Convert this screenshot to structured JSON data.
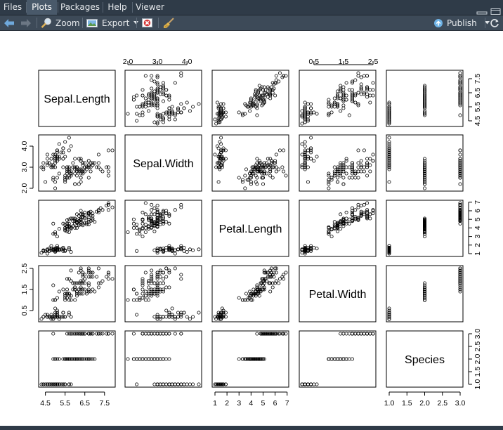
{
  "tabs": [
    {
      "label": "Files",
      "active": false
    },
    {
      "label": "Plots",
      "active": true
    },
    {
      "label": "Packages",
      "active": false
    },
    {
      "label": "Help",
      "active": false
    },
    {
      "label": "Viewer",
      "active": false
    }
  ],
  "toolbar": {
    "zoom_label": "Zoom",
    "export_label": "Export",
    "publish_label": "Publish",
    "icons": [
      "back-arrow-icon",
      "forward-arrow-icon",
      "zoom-magnifier-icon",
      "export-image-icon",
      "remove-plot-icon",
      "broom-icon",
      "publish-icon",
      "chevron-down-icon"
    ]
  },
  "colors": {
    "tabbar": "#2f3b48",
    "toolbar": "#3d4a58",
    "publish_blue": "#6fb3e6"
  },
  "chart_data": {
    "type": "scatter",
    "variables": [
      "Sepal.Length",
      "Sepal.Width",
      "Petal.Length",
      "Petal.Width",
      "Species"
    ],
    "ranges": [
      [
        4.3,
        7.9
      ],
      [
        2.0,
        4.4
      ],
      [
        1.0,
        6.9
      ],
      [
        0.1,
        2.5
      ],
      [
        1,
        3
      ]
    ],
    "ticks": {
      "Sepal.Length": [
        "4.5",
        "5.5",
        "6.5",
        "7.5"
      ],
      "Sepal.Width": [
        "2.0",
        "3.0",
        "4.0"
      ],
      "Petal.Length": [
        "1",
        "2",
        "3",
        "4",
        "5",
        "6",
        "7"
      ],
      "Petal.Width": [
        "0.5",
        "1.5",
        "2.5"
      ],
      "Species": [
        "1.0",
        "1.5",
        "2.0",
        "2.5",
        "3.0"
      ]
    },
    "tick_values": {
      "Sepal.Length": [
        4.5,
        5.5,
        6.5,
        7.5
      ],
      "Sepal.Width": [
        2.0,
        3.0,
        4.0
      ],
      "Petal.Length": [
        1,
        2,
        3,
        4,
        5,
        6,
        7
      ],
      "Petal.Width": [
        0.5,
        1.5,
        2.5
      ],
      "Species": [
        1.0,
        1.5,
        2.0,
        2.5,
        3.0
      ]
    },
    "species_index": [
      1,
      1,
      1,
      1,
      1,
      1,
      1,
      1,
      1,
      1,
      1,
      1,
      1,
      1,
      1,
      1,
      1,
      1,
      1,
      1,
      1,
      1,
      1,
      1,
      1,
      1,
      1,
      1,
      1,
      1,
      1,
      1,
      1,
      1,
      1,
      1,
      1,
      1,
      1,
      1,
      1,
      1,
      1,
      1,
      1,
      1,
      1,
      1,
      1,
      1,
      2,
      2,
      2,
      2,
      2,
      2,
      2,
      2,
      2,
      2,
      2,
      2,
      2,
      2,
      2,
      2,
      2,
      2,
      2,
      2,
      2,
      2,
      2,
      2,
      2,
      2,
      2,
      2,
      2,
      2,
      2,
      2,
      2,
      2,
      2,
      2,
      2,
      2,
      2,
      2,
      2,
      2,
      2,
      2,
      2,
      2,
      2,
      2,
      2,
      2,
      3,
      3,
      3,
      3,
      3,
      3,
      3,
      3,
      3,
      3,
      3,
      3,
      3,
      3,
      3,
      3,
      3,
      3,
      3,
      3,
      3,
      3,
      3,
      3,
      3,
      3,
      3,
      3,
      3,
      3,
      3,
      3,
      3,
      3,
      3,
      3,
      3,
      3,
      3,
      3,
      3,
      3,
      3,
      3,
      3,
      3,
      3,
      3,
      3,
      3
    ],
    "sepal_length": [
      5.1,
      4.9,
      4.7,
      4.6,
      5.0,
      5.4,
      4.6,
      5.0,
      4.4,
      4.9,
      5.4,
      4.8,
      4.8,
      4.3,
      5.8,
      5.7,
      5.4,
      5.1,
      5.7,
      5.1,
      5.4,
      5.1,
      4.6,
      5.1,
      4.8,
      5.0,
      5.0,
      5.2,
      5.2,
      4.7,
      4.8,
      5.4,
      5.2,
      5.5,
      4.9,
      5.0,
      5.5,
      4.9,
      4.4,
      5.1,
      5.0,
      4.5,
      4.4,
      5.0,
      5.1,
      4.8,
      5.1,
      4.6,
      5.3,
      5.0,
      7.0,
      6.4,
      6.9,
      5.5,
      6.5,
      5.7,
      6.3,
      4.9,
      6.6,
      5.2,
      5.0,
      5.9,
      6.0,
      6.1,
      5.6,
      6.7,
      5.6,
      5.8,
      6.2,
      5.6,
      5.9,
      6.1,
      6.3,
      6.1,
      6.4,
      6.6,
      6.8,
      6.7,
      6.0,
      5.7,
      5.5,
      5.5,
      5.8,
      6.0,
      5.4,
      6.0,
      6.7,
      6.3,
      5.6,
      5.5,
      5.5,
      6.1,
      5.8,
      5.0,
      5.6,
      5.7,
      5.7,
      6.2,
      5.1,
      5.7,
      6.3,
      5.8,
      7.1,
      6.3,
      6.5,
      7.6,
      4.9,
      7.3,
      6.7,
      7.2,
      6.5,
      6.4,
      6.8,
      5.7,
      5.8,
      6.4,
      6.5,
      7.7,
      7.7,
      6.0,
      6.9,
      5.6,
      7.7,
      6.3,
      6.7,
      7.2,
      6.2,
      6.1,
      6.4,
      7.2,
      7.4,
      7.9,
      6.4,
      6.3,
      6.1,
      7.7,
      6.3,
      6.4,
      6.0,
      6.9,
      6.7,
      6.9,
      5.8,
      6.8,
      6.7,
      6.7,
      6.3,
      6.5,
      6.2,
      5.9
    ],
    "sepal_width": [
      3.5,
      3.0,
      3.2,
      3.1,
      3.6,
      3.9,
      3.4,
      3.4,
      2.9,
      3.1,
      3.7,
      3.4,
      3.0,
      3.0,
      4.0,
      4.4,
      3.9,
      3.5,
      3.8,
      3.8,
      3.4,
      3.7,
      3.6,
      3.3,
      3.4,
      3.0,
      3.4,
      3.5,
      3.4,
      3.2,
      3.1,
      3.4,
      4.1,
      4.2,
      3.1,
      3.2,
      3.5,
      3.6,
      3.0,
      3.4,
      3.5,
      2.3,
      3.2,
      3.5,
      3.8,
      3.0,
      3.8,
      3.2,
      3.7,
      3.3,
      3.2,
      3.2,
      3.1,
      2.3,
      2.8,
      2.8,
      3.3,
      2.4,
      2.9,
      2.7,
      2.0,
      3.0,
      2.2,
      2.9,
      2.9,
      3.1,
      3.0,
      2.7,
      2.2,
      2.5,
      3.2,
      2.8,
      2.5,
      2.8,
      2.9,
      3.0,
      2.8,
      3.0,
      2.9,
      2.6,
      2.4,
      2.4,
      2.7,
      2.7,
      3.0,
      3.4,
      3.1,
      2.3,
      3.0,
      2.5,
      2.6,
      3.0,
      2.6,
      2.3,
      2.7,
      3.0,
      2.9,
      2.9,
      2.5,
      2.8,
      3.3,
      2.7,
      3.0,
      2.9,
      3.0,
      3.0,
      2.5,
      2.9,
      2.5,
      3.6,
      3.2,
      2.7,
      3.0,
      2.5,
      2.8,
      3.2,
      3.0,
      3.8,
      2.6,
      2.2,
      3.2,
      2.8,
      2.8,
      2.7,
      3.3,
      3.2,
      2.8,
      3.0,
      2.8,
      3.0,
      2.8,
      3.8,
      2.8,
      2.8,
      2.6,
      3.0,
      3.4,
      3.1,
      3.0,
      3.1,
      3.1,
      3.1,
      2.7,
      3.2,
      3.3,
      3.0,
      2.5,
      3.0,
      3.4,
      3.0
    ],
    "petal_length": [
      1.4,
      1.4,
      1.3,
      1.5,
      1.4,
      1.7,
      1.4,
      1.5,
      1.4,
      1.5,
      1.5,
      1.6,
      1.4,
      1.1,
      1.2,
      1.5,
      1.3,
      1.4,
      1.7,
      1.5,
      1.7,
      1.5,
      1.0,
      1.7,
      1.9,
      1.6,
      1.6,
      1.5,
      1.4,
      1.6,
      1.6,
      1.5,
      1.5,
      1.4,
      1.5,
      1.2,
      1.3,
      1.4,
      1.3,
      1.5,
      1.3,
      1.3,
      1.3,
      1.6,
      1.9,
      1.4,
      1.6,
      1.4,
      1.5,
      1.4,
      4.7,
      4.5,
      4.9,
      4.0,
      4.6,
      4.5,
      4.7,
      3.3,
      4.6,
      3.9,
      3.5,
      4.2,
      4.0,
      4.7,
      3.6,
      4.4,
      4.5,
      4.1,
      4.5,
      3.9,
      4.8,
      4.0,
      4.9,
      4.7,
      4.3,
      4.4,
      4.8,
      5.0,
      4.5,
      3.5,
      3.8,
      3.7,
      3.9,
      5.1,
      4.5,
      4.5,
      4.7,
      4.4,
      4.1,
      4.0,
      4.4,
      4.6,
      4.0,
      3.3,
      4.2,
      4.2,
      4.2,
      4.3,
      3.0,
      4.1,
      6.0,
      5.1,
      5.9,
      5.6,
      5.8,
      6.6,
      4.5,
      6.3,
      5.8,
      6.1,
      5.1,
      5.3,
      5.5,
      5.0,
      5.1,
      5.3,
      5.5,
      6.7,
      6.9,
      5.0,
      5.7,
      4.9,
      6.7,
      4.9,
      5.7,
      6.0,
      4.8,
      4.9,
      5.6,
      5.8,
      6.1,
      6.4,
      5.6,
      5.1,
      5.6,
      6.1,
      5.6,
      5.5,
      4.8,
      5.4,
      5.6,
      5.1,
      5.1,
      5.9,
      5.7,
      5.2,
      5.0,
      5.2,
      5.4,
      5.1
    ],
    "petal_width": [
      0.2,
      0.2,
      0.2,
      0.2,
      0.2,
      0.4,
      0.3,
      0.2,
      0.2,
      0.1,
      0.2,
      0.2,
      0.1,
      0.1,
      0.2,
      0.4,
      0.4,
      0.3,
      0.3,
      0.3,
      0.2,
      0.4,
      0.2,
      0.5,
      0.2,
      0.2,
      0.4,
      0.2,
      0.2,
      0.2,
      0.2,
      0.4,
      0.1,
      0.2,
      0.2,
      0.2,
      0.2,
      0.1,
      0.2,
      0.2,
      0.3,
      0.3,
      0.2,
      0.6,
      0.4,
      0.3,
      0.2,
      0.2,
      0.2,
      0.2,
      1.4,
      1.5,
      1.5,
      1.3,
      1.5,
      1.3,
      1.6,
      1.0,
      1.3,
      1.4,
      1.0,
      1.5,
      1.0,
      1.4,
      1.3,
      1.4,
      1.5,
      1.0,
      1.5,
      1.1,
      1.8,
      1.3,
      1.5,
      1.2,
      1.3,
      1.4,
      1.4,
      1.7,
      1.5,
      1.0,
      1.1,
      1.0,
      1.2,
      1.6,
      1.5,
      1.6,
      1.5,
      1.3,
      1.3,
      1.3,
      1.2,
      1.4,
      1.2,
      1.0,
      1.3,
      1.2,
      1.3,
      1.3,
      1.1,
      1.3,
      2.5,
      1.9,
      2.1,
      1.8,
      2.2,
      2.1,
      1.7,
      1.8,
      1.8,
      2.5,
      2.0,
      1.9,
      2.1,
      2.0,
      2.4,
      2.3,
      1.8,
      2.2,
      2.3,
      1.5,
      2.3,
      2.0,
      2.0,
      1.8,
      2.1,
      1.8,
      1.8,
      1.8,
      2.1,
      1.6,
      1.9,
      2.0,
      2.2,
      1.5,
      1.4,
      2.3,
      2.4,
      1.8,
      1.8,
      2.1,
      2.4,
      2.3,
      1.9,
      2.3,
      2.5,
      2.3,
      1.9,
      2.0,
      2.3,
      1.8
    ]
  }
}
